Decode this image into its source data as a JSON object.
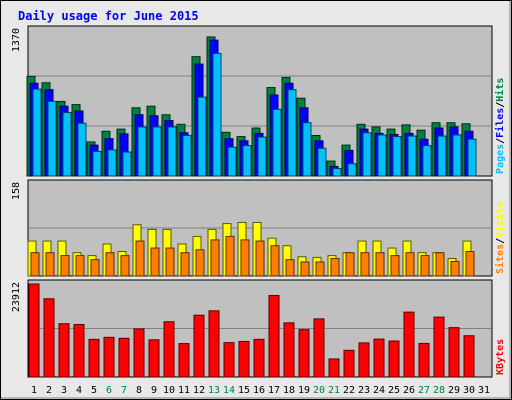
{
  "colors": {
    "background": "#E8E8E8",
    "panel": "#C0C0C0",
    "hits": "#008040",
    "files": "#0000FF",
    "pages": "#00C0FF",
    "visits": "#FFFF00",
    "sites": "#FF8000",
    "kbytes": "#FF0000",
    "title": "#0000FF",
    "weekend_label": "#008040",
    "weekday_label": "#000000"
  },
  "chart_data": {
    "type": "bar",
    "title": "Daily usage for June 2015",
    "categories": [
      "1",
      "2",
      "3",
      "4",
      "5",
      "6",
      "7",
      "8",
      "9",
      "10",
      "11",
      "12",
      "13",
      "14",
      "15",
      "16",
      "17",
      "18",
      "19",
      "20",
      "21",
      "22",
      "23",
      "24",
      "25",
      "26",
      "27",
      "28",
      "29",
      "30",
      "31"
    ],
    "weekend_days": [
      "6",
      "7",
      "13",
      "14",
      "20",
      "21",
      "27",
      "28"
    ],
    "panels": [
      {
        "ymax_label": "1370",
        "ymax": 1370,
        "legend": [
          "Pages",
          "Files",
          "Hits"
        ],
        "series": [
          {
            "name": "Hits",
            "values": [
              935,
              875,
              700,
              670,
              320,
              420,
              440,
              640,
              655,
              575,
              485,
              1120,
              1305,
              410,
              370,
              450,
              830,
              925,
              730,
              380,
              140,
              290,
              485,
              460,
              440,
              480,
              430,
              500,
              500,
              490,
              0
            ]
          },
          {
            "name": "Files",
            "values": [
              870,
              810,
              655,
              610,
              290,
              350,
              395,
              575,
              565,
              520,
              405,
              1050,
              1275,
              350,
              330,
              400,
              760,
              870,
              640,
              330,
              90,
              240,
              440,
              400,
              390,
              400,
              345,
              450,
              460,
              420,
              0
            ]
          },
          {
            "name": "Pages",
            "values": [
              815,
              700,
              595,
              495,
              230,
              245,
              225,
              460,
              460,
              460,
              380,
              740,
              1150,
              270,
              285,
              365,
              625,
              810,
              500,
              260,
              70,
              115,
              405,
              385,
              370,
              375,
              285,
              375,
              385,
              345,
              0
            ]
          }
        ]
      },
      {
        "ymax_label": "158",
        "ymax": 158,
        "legend": [
          "Sites",
          "Visits"
        ],
        "series": [
          {
            "name": "Visits",
            "values": [
              60,
              60,
              60,
              40,
              35,
              55,
              42,
              88,
              80,
              80,
              55,
              68,
              80,
              90,
              92,
              92,
              65,
              52,
              33,
              32,
              35,
              40,
              60,
              60,
              48,
              60,
              40,
              40,
              30,
              60,
              0
            ]
          },
          {
            "name": "Sites",
            "values": [
              40,
              40,
              35,
              35,
              28,
              40,
              35,
              60,
              48,
              48,
              40,
              45,
              62,
              68,
              62,
              60,
              52,
              28,
              24,
              24,
              30,
              40,
              40,
              40,
              35,
              40,
              35,
              40,
              25,
              42,
              0
            ]
          }
        ]
      },
      {
        "ymax_label": "23912",
        "ymax": 23912,
        "legend": [
          "KBytes"
        ],
        "series": [
          {
            "name": "KBytes",
            "values": [
              23912,
              20110,
              13700,
              13490,
              9680,
              10200,
              9960,
              12370,
              9570,
              14210,
              8590,
              15890,
              17020,
              8830,
              9140,
              9680,
              20960,
              13920,
              12180,
              14950,
              4650,
              6860,
              8770,
              9740,
              9250,
              16680,
              8640,
              15390,
              12700,
              10610,
              0
            ]
          }
        ]
      }
    ]
  }
}
